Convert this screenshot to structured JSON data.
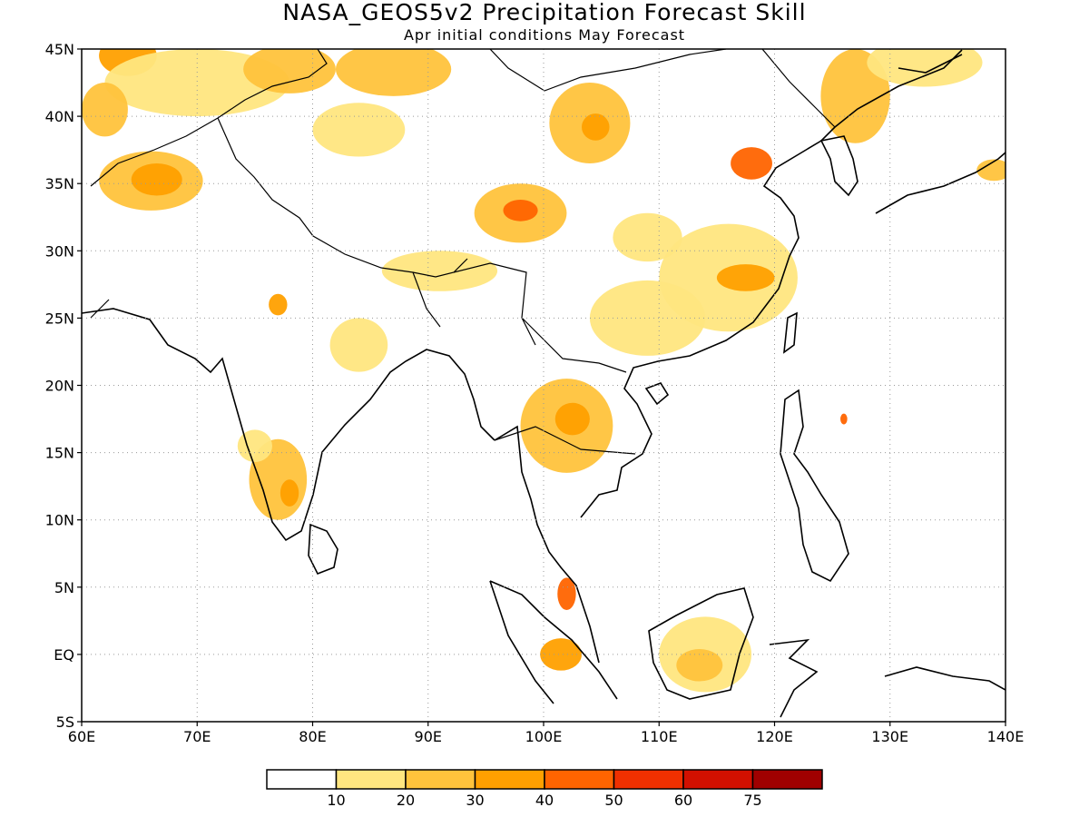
{
  "figure": {
    "title": "NASA_GEOS5v2 Precipitation Forecast Skill",
    "subtitle": "Apr initial conditions  May Forecast"
  },
  "map": {
    "lon_range": [
      60,
      140
    ],
    "lat_range": [
      -5,
      45
    ],
    "x_ticks": [
      {
        "lon": 60,
        "label": "60E"
      },
      {
        "lon": 70,
        "label": "70E"
      },
      {
        "lon": 80,
        "label": "80E"
      },
      {
        "lon": 90,
        "label": "90E"
      },
      {
        "lon": 100,
        "label": "100E"
      },
      {
        "lon": 110,
        "label": "110E"
      },
      {
        "lon": 120,
        "label": "120E"
      },
      {
        "lon": 130,
        "label": "130E"
      },
      {
        "lon": 140,
        "label": "140E"
      }
    ],
    "y_ticks": [
      {
        "lat": 45,
        "label": "45N"
      },
      {
        "lat": 40,
        "label": "40N"
      },
      {
        "lat": 35,
        "label": "35N"
      },
      {
        "lat": 30,
        "label": "30N"
      },
      {
        "lat": 25,
        "label": "25N"
      },
      {
        "lat": 20,
        "label": "20N"
      },
      {
        "lat": 15,
        "label": "15N"
      },
      {
        "lat": 10,
        "label": "10N"
      },
      {
        "lat": 5,
        "label": "5N"
      },
      {
        "lat": 0,
        "label": "EQ"
      },
      {
        "lat": -5,
        "label": "5S"
      }
    ],
    "grid": "dotted"
  },
  "colorbar": {
    "colors": [
      "#ffffff",
      "#ffe680",
      "#ffc33c",
      "#ffa000",
      "#ff6400",
      "#f03000",
      "#d21000",
      "#a00000"
    ],
    "labels": [
      "10",
      "20",
      "30",
      "40",
      "50",
      "60",
      "75"
    ]
  },
  "skill_regions": [
    {
      "lon": 66,
      "lat": 35.2,
      "rlon": 4.5,
      "rlat": 2.2,
      "level": 2
    },
    {
      "lon": 66.5,
      "lat": 35.3,
      "rlon": 2.2,
      "rlat": 1.2,
      "level": 3
    },
    {
      "lon": 64,
      "lat": 44.5,
      "rlon": 2.5,
      "rlat": 1.5,
      "level": 3
    },
    {
      "lon": 70,
      "lat": 42.5,
      "rlon": 8,
      "rlat": 2.5,
      "level": 1
    },
    {
      "lon": 78,
      "lat": 43.5,
      "rlon": 4,
      "rlat": 1.8,
      "level": 2
    },
    {
      "lon": 87,
      "lat": 43.5,
      "rlon": 5,
      "rlat": 2,
      "level": 2
    },
    {
      "lon": 84,
      "lat": 39,
      "rlon": 4,
      "rlat": 2,
      "level": 1
    },
    {
      "lon": 62,
      "lat": 40.5,
      "rlon": 2,
      "rlat": 2,
      "level": 2
    },
    {
      "lon": 98,
      "lat": 32.8,
      "rlon": 4,
      "rlat": 2.2,
      "level": 2
    },
    {
      "lon": 98,
      "lat": 33,
      "rlon": 1.5,
      "rlat": 0.8,
      "level": 4
    },
    {
      "lon": 104,
      "lat": 39.5,
      "rlon": 3.5,
      "rlat": 3,
      "level": 2
    },
    {
      "lon": 104.5,
      "lat": 39.2,
      "rlon": 1.2,
      "rlat": 1,
      "level": 3
    },
    {
      "lon": 118,
      "lat": 36.5,
      "rlon": 1.8,
      "rlat": 1.2,
      "level": 4
    },
    {
      "lon": 127,
      "lat": 41.5,
      "rlon": 3,
      "rlat": 3.5,
      "level": 2
    },
    {
      "lon": 133,
      "lat": 44,
      "rlon": 5,
      "rlat": 1.8,
      "level": 1
    },
    {
      "lon": 116,
      "lat": 28,
      "rlon": 6,
      "rlat": 4,
      "level": 1
    },
    {
      "lon": 117.5,
      "lat": 28,
      "rlon": 2.5,
      "rlat": 1,
      "level": 3
    },
    {
      "lon": 109,
      "lat": 25,
      "rlon": 5,
      "rlat": 2.8,
      "level": 1
    },
    {
      "lon": 109,
      "lat": 31,
      "rlon": 3,
      "rlat": 1.8,
      "level": 1
    },
    {
      "lon": 102,
      "lat": 17,
      "rlon": 4,
      "rlat": 3.5,
      "level": 2
    },
    {
      "lon": 102.5,
      "lat": 17.5,
      "rlon": 1.5,
      "rlat": 1.2,
      "level": 3
    },
    {
      "lon": 77,
      "lat": 13,
      "rlon": 2.5,
      "rlat": 3,
      "level": 2
    },
    {
      "lon": 78,
      "lat": 12,
      "rlon": 0.8,
      "rlat": 1,
      "level": 3
    },
    {
      "lon": 75,
      "lat": 15.5,
      "rlon": 1.5,
      "rlat": 1.2,
      "level": 1
    },
    {
      "lon": 84,
      "lat": 23,
      "rlon": 2.5,
      "rlat": 2,
      "level": 1
    },
    {
      "lon": 91,
      "lat": 28.5,
      "rlon": 5,
      "rlat": 1.5,
      "level": 1
    },
    {
      "lon": 77,
      "lat": 26,
      "rlon": 0.8,
      "rlat": 0.8,
      "level": 3
    },
    {
      "lon": 114,
      "lat": 0,
      "rlon": 4,
      "rlat": 2.8,
      "level": 1
    },
    {
      "lon": 113.5,
      "lat": -0.8,
      "rlon": 2,
      "rlat": 1.2,
      "level": 2
    },
    {
      "lon": 101.5,
      "lat": 0,
      "rlon": 1.8,
      "rlat": 1.2,
      "level": 3
    },
    {
      "lon": 102,
      "lat": 4.5,
      "rlon": 0.8,
      "rlat": 1.2,
      "level": 4
    },
    {
      "lon": 139,
      "lat": 36,
      "rlon": 1.5,
      "rlat": 0.8,
      "level": 2
    },
    {
      "lon": 126,
      "lat": 17.5,
      "rlon": 0.3,
      "rlat": 0.4,
      "level": 4
    }
  ]
}
